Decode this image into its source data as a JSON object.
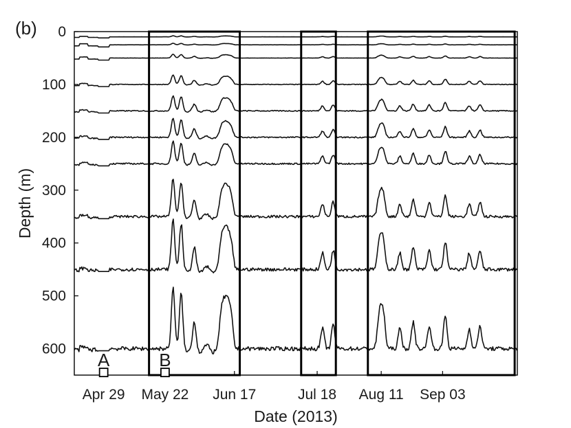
{
  "chart_data": {
    "type": "line",
    "panel_label": "(b)",
    "xlabel": "Date (2013)",
    "ylabel": "Depth (m)",
    "xlim": [
      "2013-04-18",
      "2013-10-01"
    ],
    "ylim": [
      650,
      0
    ],
    "y_inverted": true,
    "x_ticks": [
      {
        "label": "Apr 29",
        "date": "2013-04-29"
      },
      {
        "label": "May 22",
        "date": "2013-05-22"
      },
      {
        "label": "Jun 17",
        "date": "2013-06-17"
      },
      {
        "label": "Jul 18",
        "date": "2013-07-18"
      },
      {
        "label": "Aug 11",
        "date": "2013-08-11"
      },
      {
        "label": "Sep 03",
        "date": "2013-09-03"
      }
    ],
    "y_ticks": [
      0,
      100,
      200,
      300,
      400,
      500,
      600
    ],
    "series": [
      {
        "depth": 10,
        "amplitude": 0.3
      },
      {
        "depth": 25,
        "amplitude": 0.4
      },
      {
        "depth": 50,
        "amplitude": 1.0
      },
      {
        "depth": 100,
        "amplitude": 2.5
      },
      {
        "depth": 150,
        "amplitude": 4
      },
      {
        "depth": 200,
        "amplitude": 5
      },
      {
        "depth": 250,
        "amplitude": 6
      },
      {
        "depth": 350,
        "amplitude": 10
      },
      {
        "depth": 450,
        "amplitude": 13
      },
      {
        "depth": 600,
        "amplitude": 16
      }
    ],
    "events": [
      {
        "date": "2013-05-25",
        "weight": 0.9
      },
      {
        "date": "2013-05-28",
        "weight": 0.8
      },
      {
        "date": "2013-06-02",
        "weight": 0.35
      },
      {
        "date": "2013-06-12",
        "weight": 0.4
      },
      {
        "date": "2013-06-13",
        "weight": 0.5
      },
      {
        "date": "2013-06-14",
        "weight": 0.55
      },
      {
        "date": "2013-06-15",
        "weight": 0.45
      },
      {
        "date": "2013-06-16",
        "weight": 0.3
      },
      {
        "date": "2013-07-20",
        "weight": 0.3
      },
      {
        "date": "2013-07-24",
        "weight": 0.35
      },
      {
        "date": "2013-08-10",
        "weight": 0.35
      },
      {
        "date": "2013-08-11",
        "weight": 0.45
      },
      {
        "date": "2013-08-12",
        "weight": 0.4
      },
      {
        "date": "2013-08-18",
        "weight": 0.3
      },
      {
        "date": "2013-08-23",
        "weight": 0.4
      },
      {
        "date": "2013-08-29",
        "weight": 0.35
      },
      {
        "date": "2013-09-04",
        "weight": 0.5
      },
      {
        "date": "2013-09-13",
        "weight": 0.3
      },
      {
        "date": "2013-09-17",
        "weight": 0.35
      }
    ],
    "highlight_boxes": [
      {
        "start": "2013-05-16",
        "end": "2013-06-19"
      },
      {
        "start": "2013-07-12",
        "end": "2013-07-25"
      },
      {
        "start": "2013-08-06",
        "end": "2013-09-30"
      }
    ],
    "markers": [
      {
        "label": "A",
        "date": "2013-04-29",
        "depth": 645
      },
      {
        "label": "B",
        "date": "2013-05-22",
        "depth": 645
      }
    ],
    "grid": false
  }
}
